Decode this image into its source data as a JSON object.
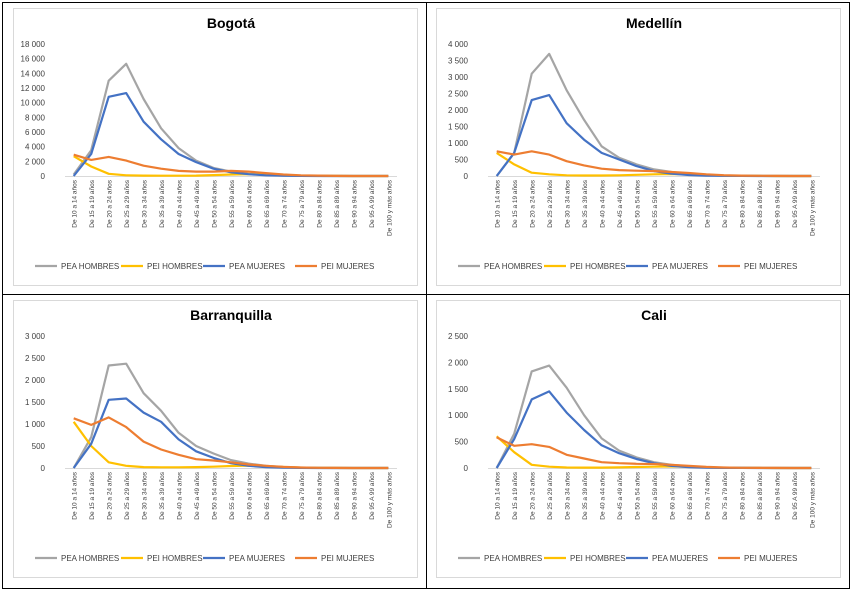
{
  "categories": [
    "De 10 a 14 años",
    "De 15 a 19 años",
    "De 20 a 24 años",
    "De 25 a 29 años",
    "De 30 a 34 años",
    "De 35 a 39 años",
    "De 40 a 44 años",
    "De 45 a 49 años",
    "De 50 a 54 años",
    "De 55 a 59 años",
    "De 60 a 64 años",
    "De 65 a 69 años",
    "De 70 a 74 años",
    "De 75 a 79 años",
    "De 80 a 84 años",
    "De 85 a 89 años",
    "De 90 a 94 años",
    "De 95 A 99 años",
    "De 100 y más años"
  ],
  "series_style": [
    {
      "name": "PEA HOMBRES",
      "color": "#a5a5a5"
    },
    {
      "name": "PEI HOMBRES",
      "color": "#ffc000"
    },
    {
      "name": "PEA MUJERES",
      "color": "#4472c4"
    },
    {
      "name": "PEI MUJERES",
      "color": "#ed7d31"
    }
  ],
  "chart_data": [
    {
      "type": "line",
      "title": "Bogotá",
      "ylim": [
        0,
        18000
      ],
      "yticks": [
        "0",
        "2 000",
        "4 000",
        "6 000",
        "8 000",
        "10 000",
        "12 000",
        "14 000",
        "16 000",
        "18 000"
      ],
      "legend": "bottom",
      "series": [
        {
          "name": "PEA HOMBRES",
          "values": [
            200,
            3500,
            13000,
            15300,
            10500,
            6500,
            3800,
            2100,
            1100,
            600,
            300,
            150,
            60,
            25,
            10,
            5,
            2,
            0,
            0
          ]
        },
        {
          "name": "PEI HOMBRES",
          "values": [
            2700,
            1300,
            300,
            100,
            50,
            40,
            40,
            60,
            120,
            200,
            250,
            180,
            100,
            50,
            20,
            10,
            3,
            0,
            0
          ]
        },
        {
          "name": "PEA MUJERES",
          "values": [
            0,
            3000,
            10800,
            11300,
            7400,
            5000,
            3000,
            1900,
            1000,
            500,
            250,
            100,
            40,
            15,
            5,
            2,
            0,
            0,
            0
          ]
        },
        {
          "name": "PEI MUJERES",
          "values": [
            2900,
            2200,
            2600,
            2100,
            1400,
            1000,
            700,
            600,
            600,
            700,
            600,
            400,
            200,
            100,
            50,
            20,
            5,
            0,
            0
          ]
        }
      ]
    },
    {
      "type": "line",
      "title": "Medellín",
      "ylim": [
        0,
        4000
      ],
      "yticks": [
        "0",
        "500",
        "1 000",
        "1 500",
        "2 000",
        "2 500",
        "3 000",
        "3 500",
        "4 000"
      ],
      "legend": "bottom",
      "series": [
        {
          "name": "PEA HOMBRES",
          "values": [
            0,
            700,
            3100,
            3700,
            2600,
            1700,
            900,
            550,
            350,
            200,
            120,
            60,
            25,
            10,
            4,
            2,
            1,
            0,
            0
          ]
        },
        {
          "name": "PEI HOMBRES",
          "values": [
            700,
            350,
            100,
            50,
            20,
            15,
            15,
            20,
            35,
            50,
            60,
            45,
            25,
            12,
            5,
            2,
            1,
            0,
            0
          ]
        },
        {
          "name": "PEA MUJERES",
          "values": [
            0,
            700,
            2300,
            2450,
            1600,
            1100,
            700,
            500,
            300,
            150,
            70,
            30,
            12,
            5,
            2,
            1,
            0,
            0,
            0
          ]
        },
        {
          "name": "PEI MUJERES",
          "values": [
            750,
            650,
            750,
            650,
            450,
            320,
            220,
            180,
            160,
            150,
            120,
            90,
            50,
            25,
            12,
            5,
            2,
            0,
            0
          ]
        }
      ]
    },
    {
      "type": "line",
      "title": "Barranquilla",
      "ylim": [
        0,
        3000
      ],
      "yticks": [
        "0",
        "500",
        "1 000",
        "1 500",
        "2 000",
        "2 500",
        "3 000"
      ],
      "legend": "bottom",
      "series": [
        {
          "name": "PEA HOMBRES",
          "values": [
            0,
            700,
            2330,
            2370,
            1700,
            1300,
            800,
            500,
            330,
            180,
            100,
            50,
            20,
            8,
            3,
            1,
            0,
            0,
            0
          ]
        },
        {
          "name": "PEI HOMBRES",
          "values": [
            1050,
            500,
            130,
            50,
            20,
            15,
            15,
            20,
            30,
            45,
            55,
            40,
            22,
            10,
            4,
            2,
            1,
            0,
            0
          ]
        },
        {
          "name": "PEA MUJERES",
          "values": [
            0,
            550,
            1550,
            1580,
            1260,
            1050,
            650,
            380,
            230,
            110,
            50,
            20,
            8,
            3,
            1,
            0,
            0,
            0,
            0
          ]
        },
        {
          "name": "PEI MUJERES",
          "values": [
            1130,
            980,
            1150,
            930,
            600,
            420,
            300,
            200,
            170,
            130,
            80,
            50,
            25,
            12,
            5,
            2,
            1,
            0,
            0
          ]
        }
      ]
    },
    {
      "type": "line",
      "title": "Cali",
      "ylim": [
        0,
        2500
      ],
      "yticks": [
        "0",
        "500",
        "1 000",
        "1 500",
        "2 000",
        "2 500"
      ],
      "legend": "bottom",
      "series": [
        {
          "name": "PEA HOMBRES",
          "values": [
            0,
            650,
            1830,
            1940,
            1520,
            1000,
            560,
            330,
            200,
            110,
            60,
            30,
            12,
            5,
            2,
            1,
            0,
            0,
            0
          ]
        },
        {
          "name": "PEI HOMBRES",
          "values": [
            600,
            300,
            60,
            25,
            10,
            8,
            8,
            12,
            18,
            25,
            30,
            22,
            12,
            6,
            3,
            1,
            0,
            0,
            0
          ]
        },
        {
          "name": "PEA MUJERES",
          "values": [
            0,
            550,
            1300,
            1450,
            1050,
            720,
            430,
            280,
            170,
            90,
            40,
            15,
            6,
            2,
            1,
            0,
            0,
            0,
            0
          ]
        },
        {
          "name": "PEI MUJERES",
          "values": [
            580,
            420,
            450,
            400,
            250,
            180,
            110,
            90,
            80,
            75,
            60,
            40,
            20,
            10,
            4,
            2,
            1,
            0,
            0
          ]
        }
      ]
    }
  ]
}
